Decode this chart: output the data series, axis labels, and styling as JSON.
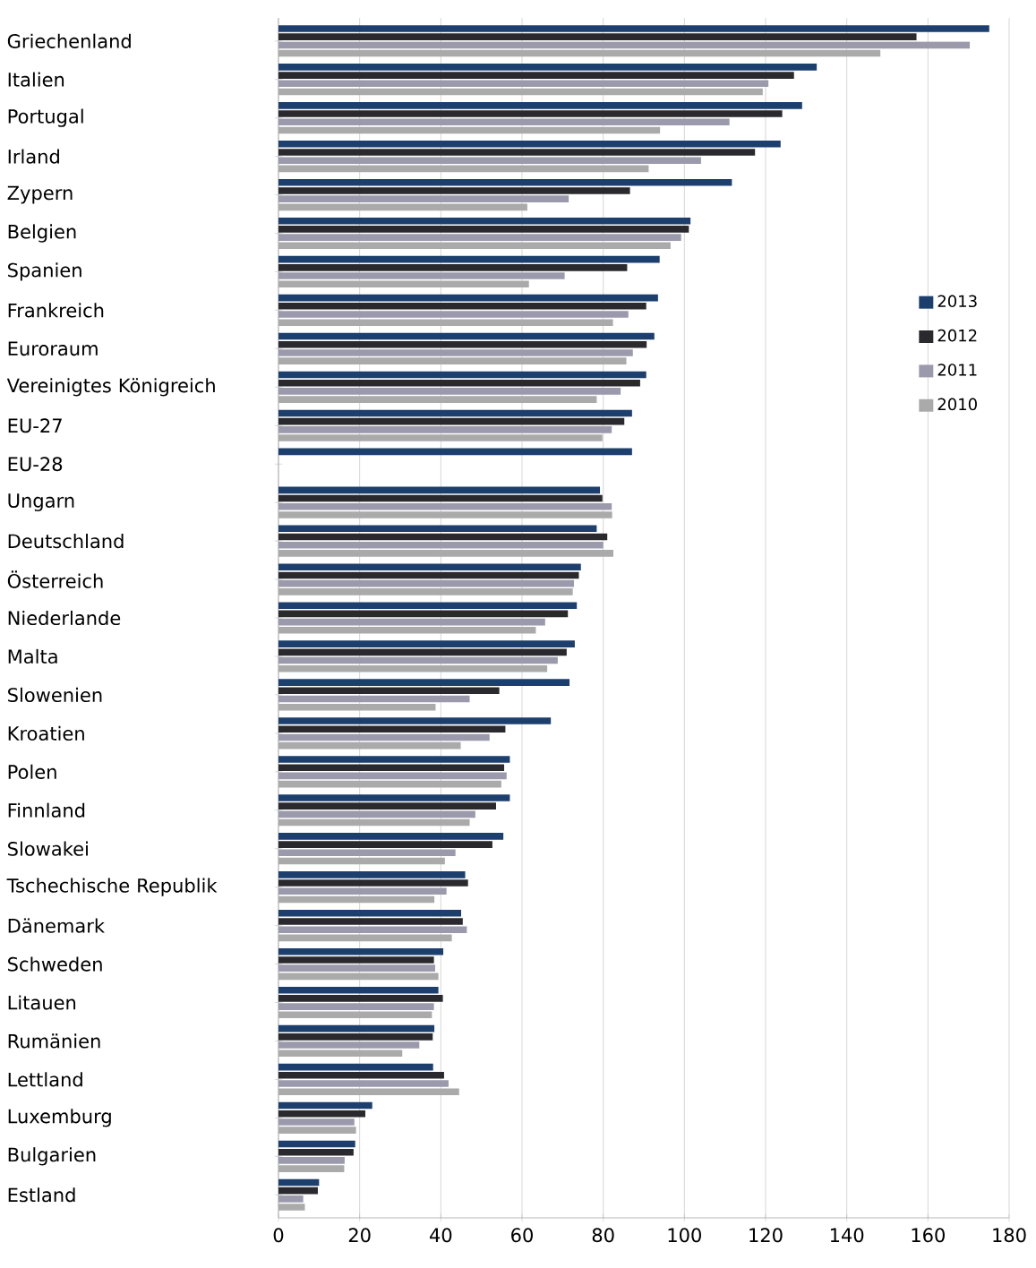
{
  "chart_data": {
    "type": "bar",
    "orientation": "horizontal",
    "categories": [
      "Griechenland",
      "Italien",
      "Portugal",
      "Irland",
      "Zypern",
      "Belgien",
      "Spanien",
      "Frankreich",
      "Euroraum",
      "Vereinigtes Königreich",
      "EU-27",
      "EU-28",
      "Ungarn",
      "Deutschland",
      "Österreich",
      "Niederlande",
      "Malta",
      "Slowenien",
      "Kroatien",
      "Polen",
      "Finnland",
      "Slowakei",
      "Tschechische Republik",
      "Dänemark",
      "Schweden",
      "Litauen",
      "Rumänien",
      "Lettland",
      "Luxemburg",
      "Bulgarien",
      "Estland"
    ],
    "series": [
      {
        "name": "2013",
        "color": "#1c3f6e",
        "values": [
          175.1,
          132.6,
          129.0,
          123.7,
          111.7,
          101.5,
          93.9,
          93.5,
          92.6,
          90.6,
          87.1,
          87.1,
          79.2,
          78.4,
          74.5,
          73.5,
          73.0,
          71.7,
          67.1,
          57.0,
          57.0,
          55.4,
          46.0,
          45.0,
          40.6,
          39.4,
          38.4,
          38.1,
          23.1,
          18.9,
          10.0
        ]
      },
      {
        "name": "2012",
        "color": "#2a2a2e",
        "values": [
          157.2,
          127.0,
          124.1,
          117.4,
          86.6,
          101.1,
          85.9,
          90.6,
          90.7,
          89.1,
          85.2,
          null,
          79.8,
          81.0,
          74.0,
          71.3,
          71.0,
          54.4,
          55.9,
          55.6,
          53.6,
          52.7,
          46.7,
          45.4,
          38.3,
          40.5,
          38.0,
          40.8,
          21.4,
          18.5,
          9.7
        ]
      },
      {
        "name": "2011",
        "color": "#9a9aac",
        "values": [
          170.3,
          120.7,
          111.1,
          104.1,
          71.5,
          99.2,
          70.5,
          86.2,
          87.3,
          84.3,
          82.1,
          null,
          82.1,
          80.0,
          72.8,
          65.7,
          68.8,
          47.1,
          52.0,
          56.2,
          48.5,
          43.6,
          41.4,
          46.4,
          38.6,
          38.3,
          34.7,
          41.9,
          18.7,
          16.3,
          6.1
        ]
      },
      {
        "name": "2010",
        "color": "#aaaaaa",
        "values": [
          148.3,
          119.3,
          94.0,
          91.2,
          61.3,
          96.6,
          61.7,
          82.4,
          85.7,
          78.4,
          79.8,
          null,
          82.2,
          82.5,
          72.5,
          63.4,
          66.2,
          38.7,
          44.9,
          54.9,
          47.1,
          41.0,
          38.4,
          42.7,
          39.4,
          37.8,
          30.5,
          44.5,
          19.1,
          16.2,
          6.5
        ]
      }
    ],
    "xlim": [
      0,
      180
    ],
    "xticks": [
      0,
      20,
      40,
      60,
      80,
      100,
      120,
      140,
      160,
      180
    ],
    "grid": "x",
    "legend": "right"
  }
}
